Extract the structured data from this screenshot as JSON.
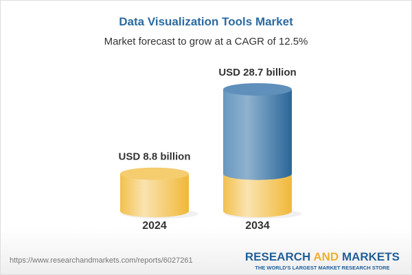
{
  "title": "Data Visualization Tools Market",
  "subtitle": "Market forecast to grow at a CAGR of 12.5%",
  "footer": {
    "url": "https://www.researchandmarkets.com/reports/6027261",
    "logo_part1": "RESEARCH ",
    "logo_part2": "AND",
    "logo_part3": " MARKETS",
    "tagline": "THE WORLD'S LARGEST MARKET RESEARCH STORE"
  },
  "colors": {
    "base": "#f2c14e",
    "growth": "#3f7fb5",
    "title": "#2a6aa0"
  },
  "chart_data": {
    "type": "bar",
    "style": "3d-cylinder",
    "categories": [
      "2024",
      "2034"
    ],
    "values": [
      8.8,
      28.7
    ],
    "data_labels": [
      "USD 8.8 billion",
      "USD 28.7 billion"
    ],
    "unit": "USD billion",
    "title": "Data Visualization Tools Market",
    "subtitle": "Market forecast to grow at a CAGR of 12.5%"
  }
}
